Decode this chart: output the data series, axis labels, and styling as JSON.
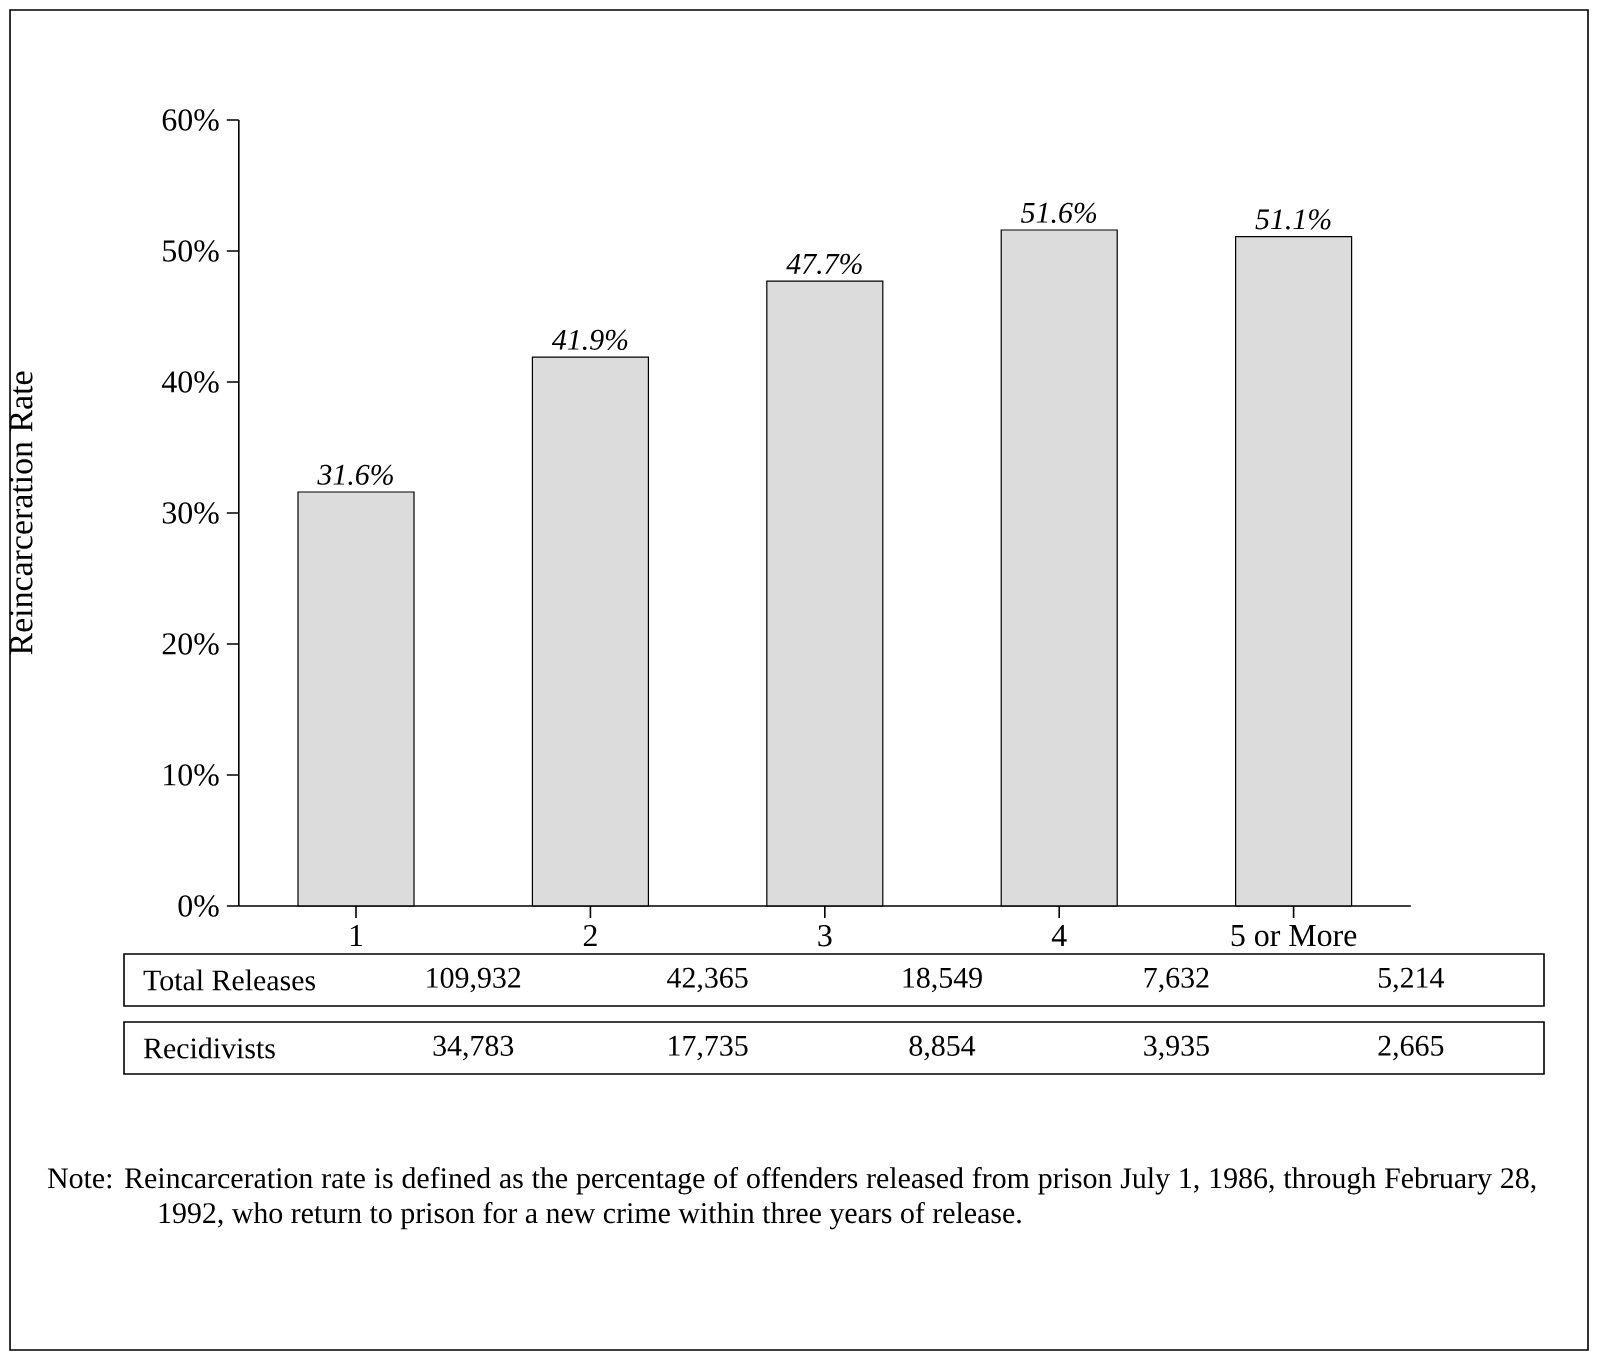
{
  "chart_data": {
    "type": "bar",
    "ylabel": "Reincarceration Rate",
    "categories": [
      "1",
      "2",
      "3",
      "4",
      "5 or More"
    ],
    "values": [
      31.6,
      41.9,
      47.7,
      51.6,
      51.1
    ],
    "value_labels": [
      "31.6%",
      "41.9%",
      "47.7%",
      "51.6%",
      "51.1%"
    ],
    "color": "#dcdcdc",
    "ylim": [
      0,
      60
    ],
    "yticks": [
      {
        "value": 0,
        "label": "0%"
      },
      {
        "value": 10,
        "label": "10%"
      },
      {
        "value": 20,
        "label": "20%"
      },
      {
        "value": 30,
        "label": "30%"
      },
      {
        "value": 40,
        "label": "40%"
      },
      {
        "value": 50,
        "label": "50%"
      },
      {
        "value": 60,
        "label": "60%"
      }
    ],
    "annotations": [
      "Total Releases",
      "109,932",
      "42,365",
      "18,549",
      "7,632",
      "5,214",
      "Recidivists",
      "34,783",
      "17,735",
      "8,854",
      "3,935",
      "2,665",
      "Note: Reincarceration rate is defined as the percentage of offenders released from prison July 1, 1986, through February 28, 1992, who return to prison for a new crime within three years of release."
    ]
  }
}
